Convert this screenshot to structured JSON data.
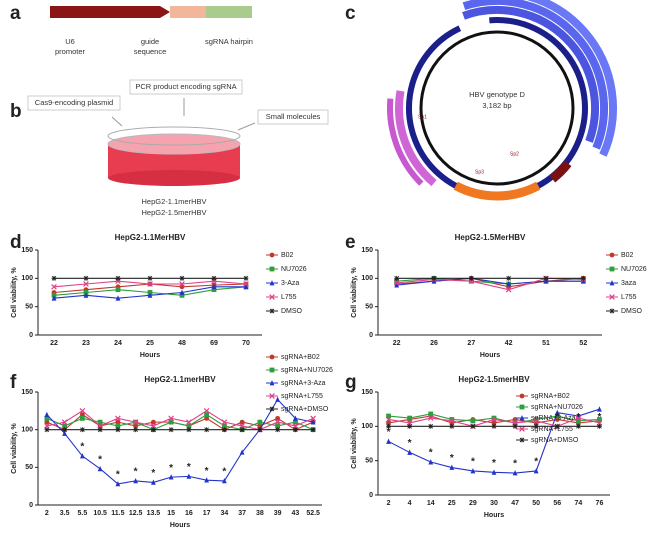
{
  "diagram_a": {
    "label": "a",
    "promoter": [
      "U6",
      "promoter"
    ],
    "guide": [
      "guide",
      "sequence"
    ],
    "hairpin": "sgRNA hairpin"
  },
  "diagram_b": {
    "label": "b",
    "callouts": [
      "Cas9-encoding plasmid",
      "PCR product encoding sgRNA",
      "Small molecules"
    ],
    "cell_lines": [
      "HepG2-1.1merHBV",
      "HepG2-1.5merHBV"
    ]
  },
  "diagram_c": {
    "label": "c",
    "title": [
      "HBV genotype D",
      "3,182 bp"
    ],
    "features": [
      "Sp1",
      "Sp2",
      "Sp3"
    ]
  },
  "chart_data": [
    {
      "type": "line",
      "panel": "d",
      "title": "HepG2-1.1MerHBV",
      "x_label": "Hours",
      "y_label": "Cell viability, %",
      "categories": [
        "22",
        "23",
        "24",
        "25",
        "48",
        "69",
        "70"
      ],
      "ylim": [
        0,
        150
      ],
      "yticks": [
        0,
        50,
        100,
        150
      ],
      "legend": "right",
      "series": [
        {
          "name": "B02",
          "color": "#c0392b",
          "marker": "circle",
          "values": [
            75,
            80,
            85,
            90,
            85,
            88,
            90
          ]
        },
        {
          "name": "NU7026",
          "color": "#2e9e3e",
          "marker": "square",
          "values": [
            70,
            75,
            80,
            75,
            70,
            80,
            85
          ]
        },
        {
          "name": "3-Aza",
          "color": "#2233cc",
          "marker": "triangle",
          "values": [
            65,
            70,
            65,
            70,
            75,
            85,
            85
          ]
        },
        {
          "name": "L755",
          "color": "#e0408a",
          "marker": "cross",
          "values": [
            85,
            90,
            95,
            90,
            90,
            95,
            90
          ]
        },
        {
          "name": "DMSO",
          "color": "#222222",
          "marker": "star",
          "values": [
            100,
            100,
            100,
            100,
            100,
            100,
            100
          ]
        }
      ]
    },
    {
      "type": "line",
      "panel": "e",
      "title": "HepG2-1.5MerHBV",
      "x_label": "Hours",
      "y_label": "Cell viability, %",
      "categories": [
        "22",
        "26",
        "27",
        "42",
        "51",
        "52"
      ],
      "ylim": [
        0,
        150
      ],
      "yticks": [
        0,
        50,
        100,
        150
      ],
      "legend": "right",
      "series": [
        {
          "name": "B02",
          "color": "#c0392b",
          "marker": "circle",
          "values": [
            90,
            95,
            100,
            85,
            95,
            100
          ]
        },
        {
          "name": "NU7026",
          "color": "#2e9e3e",
          "marker": "square",
          "values": [
            95,
            100,
            95,
            90,
            95,
            95
          ]
        },
        {
          "name": "3aza",
          "color": "#2233cc",
          "marker": "triangle",
          "values": [
            88,
            95,
            100,
            90,
            95,
            95
          ]
        },
        {
          "name": "L755",
          "color": "#e0408a",
          "marker": "cross",
          "values": [
            92,
            98,
            95,
            80,
            100,
            98
          ]
        },
        {
          "name": "DMSO",
          "color": "#222222",
          "marker": "star",
          "values": [
            100,
            100,
            100,
            100,
            100,
            100
          ]
        }
      ]
    },
    {
      "type": "line",
      "panel": "f",
      "title": "HepG2-1.1merHBV",
      "x_label": "Hours",
      "y_label": "Cell viability, %",
      "categories": [
        "2",
        "3.5",
        "5.5",
        "10.5",
        "11.5",
        "12.5",
        "13.5",
        "15",
        "16",
        "17",
        "34",
        "37",
        "38",
        "39",
        "43",
        "52.5"
      ],
      "ylim": [
        0,
        150
      ],
      "yticks": [
        0,
        50,
        100,
        150
      ],
      "legend": "top-right",
      "series": [
        {
          "name": "sgRNA+B02",
          "color": "#c0392b",
          "marker": "circle",
          "values": [
            110,
            100,
            120,
            105,
            110,
            105,
            110,
            110,
            105,
            115,
            100,
            110,
            105,
            115,
            100,
            110
          ]
        },
        {
          "name": "sgRNA+NU7026",
          "color": "#2e9e3e",
          "marker": "square",
          "values": [
            115,
            105,
            115,
            110,
            105,
            110,
            100,
            110,
            105,
            120,
            105,
            100,
            110,
            105,
            110,
            100
          ]
        },
        {
          "name": "sgRNA+3-Aza",
          "color": "#2233cc",
          "marker": "triangle",
          "values": [
            120,
            95,
            65,
            48,
            28,
            32,
            30,
            37,
            38,
            33,
            32,
            70,
            100,
            140,
            115,
            110
          ]
        },
        {
          "name": "sgRNA+L755",
          "color": "#e0408a",
          "marker": "cross",
          "values": [
            105,
            110,
            125,
            105,
            115,
            110,
            105,
            115,
            110,
            125,
            110,
            105,
            100,
            110,
            105,
            115
          ]
        },
        {
          "name": "sgRNA+DMSO",
          "color": "#222222",
          "marker": "star",
          "values": [
            100,
            100,
            100,
            100,
            100,
            100,
            100,
            100,
            100,
            100,
            100,
            100,
            100,
            100,
            100,
            100
          ]
        }
      ],
      "annotations": [
        {
          "text": "*",
          "category": "5.5"
        },
        {
          "text": "*",
          "category": "10.5"
        },
        {
          "text": "*",
          "category": "11.5"
        },
        {
          "text": "*",
          "category": "12.5"
        },
        {
          "text": "*",
          "category": "13.5"
        },
        {
          "text": "*",
          "category": "15"
        },
        {
          "text": "*",
          "category": "16"
        },
        {
          "text": "*",
          "category": "17"
        },
        {
          "text": "*",
          "category": "34"
        }
      ]
    },
    {
      "type": "line",
      "panel": "g",
      "title": "HepG2-1.5merHBV",
      "x_label": "Hours",
      "y_label": "Cell viability, %",
      "categories": [
        "2",
        "4",
        "14",
        "25",
        "29",
        "30",
        "47",
        "50",
        "56",
        "74",
        "76"
      ],
      "ylim": [
        0,
        150
      ],
      "yticks": [
        0,
        50,
        100,
        150
      ],
      "legend": "top-right",
      "series": [
        {
          "name": "sgRNA+B02",
          "color": "#c0392b",
          "marker": "circle",
          "values": [
            105,
            110,
            115,
            105,
            110,
            105,
            110,
            105,
            110,
            105,
            108
          ]
        },
        {
          "name": "sgRNA+NU7026",
          "color": "#2e9e3e",
          "marker": "square",
          "values": [
            115,
            112,
            118,
            110,
            108,
            112,
            105,
            110,
            115,
            108,
            110
          ]
        },
        {
          "name": "sgRNA+3-Aza",
          "color": "#2233cc",
          "marker": "triangle",
          "values": [
            78,
            62,
            48,
            40,
            35,
            33,
            32,
            35,
            120,
            115,
            125
          ]
        },
        {
          "name": "sgRNA+L755",
          "color": "#e0408a",
          "marker": "cross",
          "values": [
            110,
            105,
            112,
            108,
            100,
            110,
            105,
            108,
            100,
            112,
            105
          ]
        },
        {
          "name": "sgRNA+DMSO",
          "color": "#222222",
          "marker": "star",
          "values": [
            100,
            100,
            100,
            100,
            100,
            100,
            100,
            100,
            100,
            100,
            100
          ]
        }
      ],
      "annotations": [
        {
          "text": "*",
          "category": "2"
        },
        {
          "text": "*",
          "category": "4"
        },
        {
          "text": "*",
          "category": "14"
        },
        {
          "text": "*",
          "category": "25"
        },
        {
          "text": "*",
          "category": "29"
        },
        {
          "text": "*",
          "category": "30"
        },
        {
          "text": "*",
          "category": "47"
        },
        {
          "text": "*",
          "category": "50"
        },
        {
          "text": "*",
          "category": "56"
        },
        {
          "text": "*",
          "category": "74"
        },
        {
          "text": "*",
          "category": "76"
        }
      ]
    }
  ]
}
